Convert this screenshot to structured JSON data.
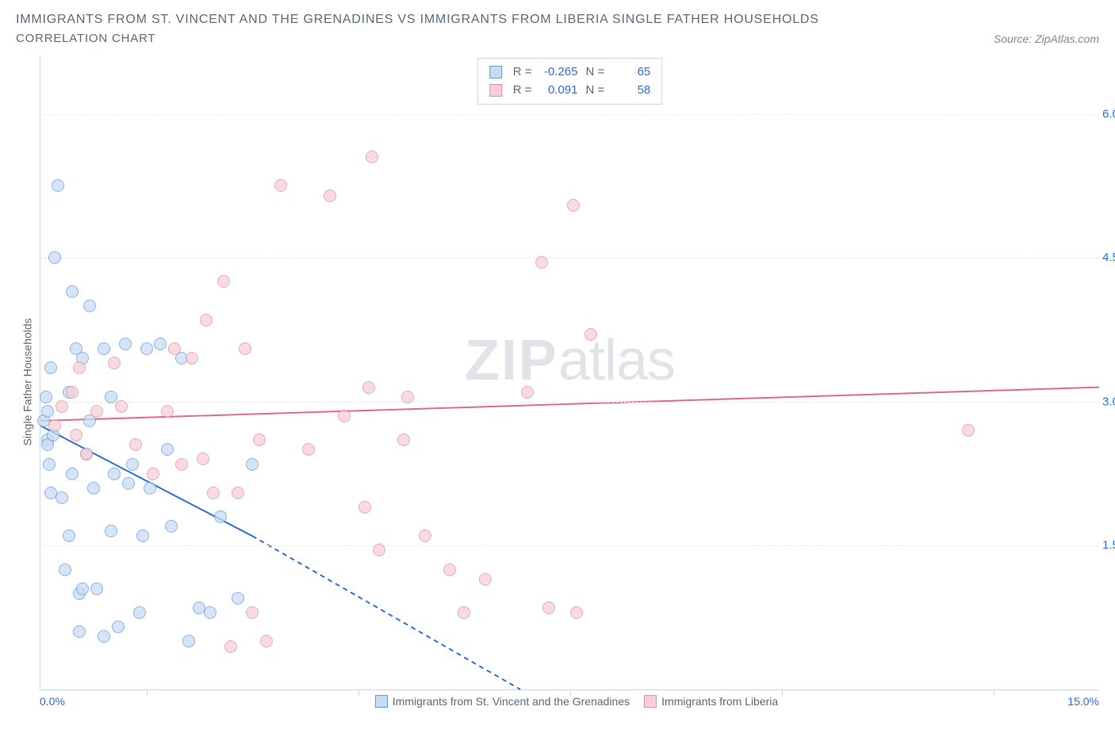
{
  "title": "IMMIGRANTS FROM ST. VINCENT AND THE GRENADINES VS IMMIGRANTS FROM LIBERIA SINGLE FATHER HOUSEHOLDS",
  "subtitle": "CORRELATION CHART",
  "source_label": "Source: ZipAtlas.com",
  "watermark_bold": "ZIP",
  "watermark_light": "atlas",
  "ylabel": "Single Father Households",
  "xaxis": {
    "min_label": "0.0%",
    "max_label": "15.0%",
    "min": 0.0,
    "max": 15.0,
    "tick_positions_pct": [
      10,
      30,
      50,
      70,
      90
    ],
    "legend_series": [
      {
        "swatch_fill": "#c7dbf4",
        "swatch_border": "#6a9be0",
        "label": "Immigrants from St. Vincent and the Grenadines"
      },
      {
        "swatch_fill": "#f6d0d8",
        "swatch_border": "#e38fa4",
        "label": "Immigrants from Liberia"
      }
    ]
  },
  "yaxis": {
    "min": 0.0,
    "max": 6.6,
    "ticks": [
      {
        "value": 1.5,
        "label": "1.5%"
      },
      {
        "value": 3.0,
        "label": "3.0%"
      },
      {
        "value": 4.5,
        "label": "4.5%"
      },
      {
        "value": 6.0,
        "label": "6.0%"
      }
    ],
    "label_color": "#2e6fdb"
  },
  "grid_color": "#e6e9ed",
  "axis_color": "#cfd6dd",
  "background_color": "#ffffff",
  "legend_box": {
    "rows": [
      {
        "swatch_fill": "#c7dbf4",
        "swatch_border": "#6a9be0",
        "r": "-0.265",
        "n": "65"
      },
      {
        "swatch_fill": "#f6d0d8",
        "swatch_border": "#e38fa4",
        "r": "0.091",
        "n": "58"
      }
    ],
    "r_label": "R =",
    "n_label": "N ="
  },
  "series": {
    "blue": {
      "fill": "#c7dbf4",
      "border": "#6a9be0",
      "line_color": "#2e6fdb",
      "line_solid": {
        "x1": 0.0,
        "y1": 2.75,
        "x2": 3.0,
        "y2": 1.6
      },
      "line_dash": {
        "x1": 3.0,
        "y1": 1.6,
        "x2": 6.8,
        "y2": 0.0
      },
      "points": [
        [
          0.05,
          2.8
        ],
        [
          0.08,
          3.05
        ],
        [
          0.1,
          2.6
        ],
        [
          0.1,
          2.9
        ],
        [
          0.1,
          2.55
        ],
        [
          0.12,
          2.35
        ],
        [
          0.15,
          3.35
        ],
        [
          0.15,
          2.05
        ],
        [
          0.18,
          2.65
        ],
        [
          0.2,
          4.5
        ],
        [
          0.25,
          5.25
        ],
        [
          0.3,
          2.0
        ],
        [
          0.35,
          1.25
        ],
        [
          0.4,
          1.6
        ],
        [
          0.4,
          3.1
        ],
        [
          0.45,
          2.25
        ],
        [
          0.45,
          4.15
        ],
        [
          0.5,
          3.55
        ],
        [
          0.55,
          1.0
        ],
        [
          0.55,
          0.6
        ],
        [
          0.6,
          3.45
        ],
        [
          0.6,
          1.05
        ],
        [
          0.65,
          2.45
        ],
        [
          0.7,
          2.8
        ],
        [
          0.7,
          4.0
        ],
        [
          0.75,
          2.1
        ],
        [
          0.8,
          1.05
        ],
        [
          0.9,
          0.55
        ],
        [
          0.9,
          3.55
        ],
        [
          1.0,
          3.05
        ],
        [
          1.0,
          1.65
        ],
        [
          1.05,
          2.25
        ],
        [
          1.1,
          0.65
        ],
        [
          1.2,
          3.6
        ],
        [
          1.25,
          2.15
        ],
        [
          1.3,
          2.35
        ],
        [
          1.4,
          0.8
        ],
        [
          1.45,
          1.6
        ],
        [
          1.5,
          3.55
        ],
        [
          1.55,
          2.1
        ],
        [
          1.7,
          3.6
        ],
        [
          1.8,
          2.5
        ],
        [
          1.85,
          1.7
        ],
        [
          2.0,
          3.45
        ],
        [
          2.1,
          0.5
        ],
        [
          2.25,
          0.85
        ],
        [
          2.4,
          0.8
        ],
        [
          2.55,
          1.8
        ],
        [
          2.8,
          0.95
        ],
        [
          3.0,
          2.35
        ]
      ]
    },
    "pink": {
      "fill": "#f6d0d8",
      "border": "#e38fa4",
      "line_color": "#e36b8a",
      "line_solid": {
        "x1": 0.0,
        "y1": 2.8,
        "x2": 15.0,
        "y2": 3.15
      },
      "points": [
        [
          0.2,
          2.75
        ],
        [
          0.3,
          2.95
        ],
        [
          0.45,
          3.1
        ],
        [
          0.5,
          2.65
        ],
        [
          0.55,
          3.35
        ],
        [
          0.65,
          2.45
        ],
        [
          0.8,
          2.9
        ],
        [
          1.05,
          3.4
        ],
        [
          1.15,
          2.95
        ],
        [
          1.35,
          2.55
        ],
        [
          1.6,
          2.25
        ],
        [
          1.8,
          2.9
        ],
        [
          1.9,
          3.55
        ],
        [
          2.0,
          2.35
        ],
        [
          2.15,
          3.45
        ],
        [
          2.3,
          2.4
        ],
        [
          2.35,
          3.85
        ],
        [
          2.45,
          2.05
        ],
        [
          2.6,
          4.25
        ],
        [
          2.7,
          0.45
        ],
        [
          2.8,
          2.05
        ],
        [
          2.9,
          3.55
        ],
        [
          3.0,
          0.8
        ],
        [
          3.1,
          2.6
        ],
        [
          3.2,
          0.5
        ],
        [
          3.4,
          5.25
        ],
        [
          3.8,
          2.5
        ],
        [
          4.1,
          5.15
        ],
        [
          4.3,
          2.85
        ],
        [
          4.6,
          1.9
        ],
        [
          4.65,
          3.15
        ],
        [
          4.8,
          1.45
        ],
        [
          4.7,
          5.55
        ],
        [
          5.15,
          2.6
        ],
        [
          5.2,
          3.05
        ],
        [
          5.45,
          1.6
        ],
        [
          5.8,
          1.25
        ],
        [
          6.0,
          0.8
        ],
        [
          6.3,
          1.15
        ],
        [
          6.9,
          3.1
        ],
        [
          7.1,
          4.45
        ],
        [
          7.2,
          0.85
        ],
        [
          7.55,
          5.05
        ],
        [
          7.6,
          0.8
        ],
        [
          7.8,
          3.7
        ],
        [
          13.15,
          2.7
        ]
      ]
    }
  }
}
